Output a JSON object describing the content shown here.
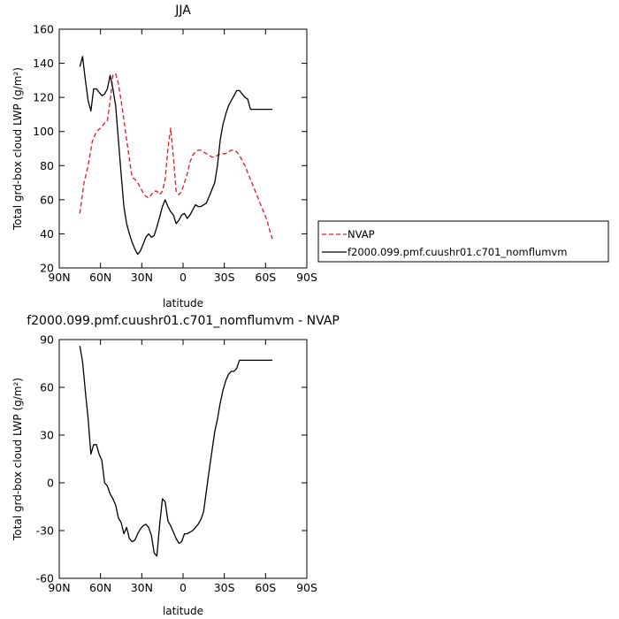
{
  "chart_data": [
    {
      "type": "line",
      "title": "JJA",
      "xlabel": "latitude",
      "ylabel": "Total grd-box cloud LWP (g/m²)",
      "xlim": [
        90,
        -90
      ],
      "ylim": [
        20,
        160
      ],
      "xticks": [
        90,
        60,
        30,
        0,
        -30,
        -60,
        -90
      ],
      "xtick_labels": [
        "90N",
        "60N",
        "30N",
        "0",
        "30S",
        "60S",
        "90S"
      ],
      "yticks": [
        20,
        40,
        60,
        80,
        100,
        120,
        140,
        160
      ],
      "ytick_labels": [
        "20",
        "40",
        "60",
        "80",
        "100",
        "120",
        "140",
        "160"
      ],
      "grid": false,
      "legend": {
        "placement": "right",
        "entries": [
          "NVAP",
          "f2000.099.pmf.cuushr01.c701_nomflumvm"
        ]
      },
      "series": [
        {
          "name": "NVAP",
          "color": "#e8161d",
          "dash": "dashed",
          "x": [
            75,
            72,
            69,
            66,
            63,
            60,
            57,
            55,
            53,
            51,
            49,
            47,
            45,
            43,
            41,
            39,
            37,
            35,
            33,
            31,
            29,
            27,
            25,
            23,
            21,
            19,
            17,
            15,
            13,
            11,
            9,
            7,
            5,
            3,
            1,
            -1,
            -3,
            -5,
            -7,
            -9,
            -11,
            -13,
            -15,
            -17,
            -19,
            -21,
            -23,
            -25,
            -27,
            -29,
            -31,
            -33,
            -35,
            -37,
            -39,
            -41,
            -43,
            -45,
            -47,
            -49,
            -51,
            -53,
            -55,
            -57,
            -59,
            -61,
            -63,
            -65
          ],
          "y": [
            52,
            70,
            80,
            94,
            100,
            102,
            105,
            106,
            118,
            133,
            134,
            128,
            118,
            107,
            95,
            84,
            73,
            72,
            70,
            67,
            64,
            62,
            61,
            63,
            65,
            65,
            63,
            65,
            72,
            90,
            102,
            85,
            65,
            63,
            65,
            70,
            75,
            82,
            86,
            88,
            89,
            89,
            88,
            87,
            86,
            85,
            85,
            86,
            87,
            87,
            87,
            88,
            89,
            89,
            88,
            86,
            83,
            80,
            76,
            72,
            68,
            64,
            60,
            56,
            52,
            48,
            42,
            37
          ]
        },
        {
          "name": "f2000.099.pmf.cuushr01.c701_nomflumvm",
          "color": "#000000",
          "dash": "solid",
          "x": [
            75,
            73,
            71,
            69,
            67,
            65,
            63,
            61,
            59,
            57,
            55,
            53,
            51,
            49,
            47,
            45,
            43,
            41,
            39,
            37,
            35,
            33,
            31,
            29,
            27,
            25,
            23,
            21,
            19,
            17,
            15,
            13,
            11,
            9,
            7,
            5,
            3,
            1,
            -1,
            -3,
            -5,
            -7,
            -9,
            -11,
            -13,
            -15,
            -17,
            -19,
            -21,
            -23,
            -25,
            -27,
            -29,
            -31,
            -33,
            -35,
            -37,
            -39,
            -41,
            -43,
            -45,
            -47,
            -49,
            -51,
            -53,
            -55,
            -57,
            -59,
            -61,
            -63,
            -65
          ],
          "y": [
            138,
            144,
            130,
            118,
            112,
            125,
            125,
            123,
            121,
            122,
            125,
            133,
            125,
            115,
            95,
            75,
            56,
            46,
            40,
            35,
            31,
            28,
            30,
            34,
            38,
            40,
            38,
            39,
            44,
            50,
            56,
            60,
            56,
            53,
            51,
            46,
            48,
            51,
            52,
            49,
            51,
            54,
            57,
            56,
            56,
            57,
            58,
            62,
            66,
            70,
            80,
            95,
            104,
            110,
            115,
            118,
            121,
            124,
            124,
            122,
            120,
            119,
            113,
            113,
            113,
            113,
            113,
            113,
            113,
            113,
            113
          ]
        }
      ]
    },
    {
      "type": "line",
      "title": "f2000.099.pmf.cuushr01.c701_nomflumvm - NVAP",
      "xlabel": "latitude",
      "ylabel": "Total grd-box cloud LWP (g/m²)",
      "xlim": [
        90,
        -90
      ],
      "ylim": [
        -60,
        90
      ],
      "xticks": [
        90,
        60,
        30,
        0,
        -30,
        -60,
        -90
      ],
      "xtick_labels": [
        "90N",
        "60N",
        "30N",
        "0",
        "30S",
        "60S",
        "90S"
      ],
      "yticks": [
        -60,
        -30,
        0,
        30,
        60,
        90
      ],
      "ytick_labels": [
        "-60",
        "-30",
        "0",
        "30",
        "60",
        "90"
      ],
      "grid": false,
      "series": [
        {
          "color": "#000000",
          "dash": "solid",
          "x": [
            75,
            73,
            71,
            69,
            67,
            65,
            63,
            61,
            59,
            57,
            55,
            53,
            51,
            49,
            47,
            45,
            43,
            41,
            39,
            37,
            35,
            33,
            31,
            29,
            27,
            25,
            23,
            21,
            19,
            17,
            15,
            13,
            11,
            9,
            7,
            5,
            3,
            1,
            -1,
            -3,
            -5,
            -7,
            -9,
            -11,
            -13,
            -15,
            -17,
            -19,
            -21,
            -23,
            -25,
            -27,
            -29,
            -31,
            -33,
            -35,
            -37,
            -39,
            -41,
            -43,
            -45,
            -47,
            -49,
            -51,
            -53,
            -55,
            -57,
            -59,
            -61,
            -63,
            -65
          ],
          "y": [
            86,
            76,
            57,
            40,
            18,
            24,
            24,
            18,
            14,
            0,
            -2,
            -7,
            -10,
            -14,
            -22,
            -25,
            -32,
            -28,
            -35,
            -37,
            -36,
            -32,
            -29,
            -27,
            -26,
            -28,
            -33,
            -44,
            -46,
            -26,
            -10,
            -12,
            -24,
            -27,
            -31,
            -35,
            -38,
            -37,
            -32,
            -32,
            -31,
            -30,
            -28,
            -26,
            -23,
            -18,
            -5,
            8,
            20,
            32,
            40,
            50,
            58,
            64,
            68,
            70,
            70,
            72,
            77,
            77,
            77,
            77,
            77,
            77,
            77,
            77,
            77,
            77,
            77,
            77,
            77
          ]
        }
      ]
    }
  ]
}
